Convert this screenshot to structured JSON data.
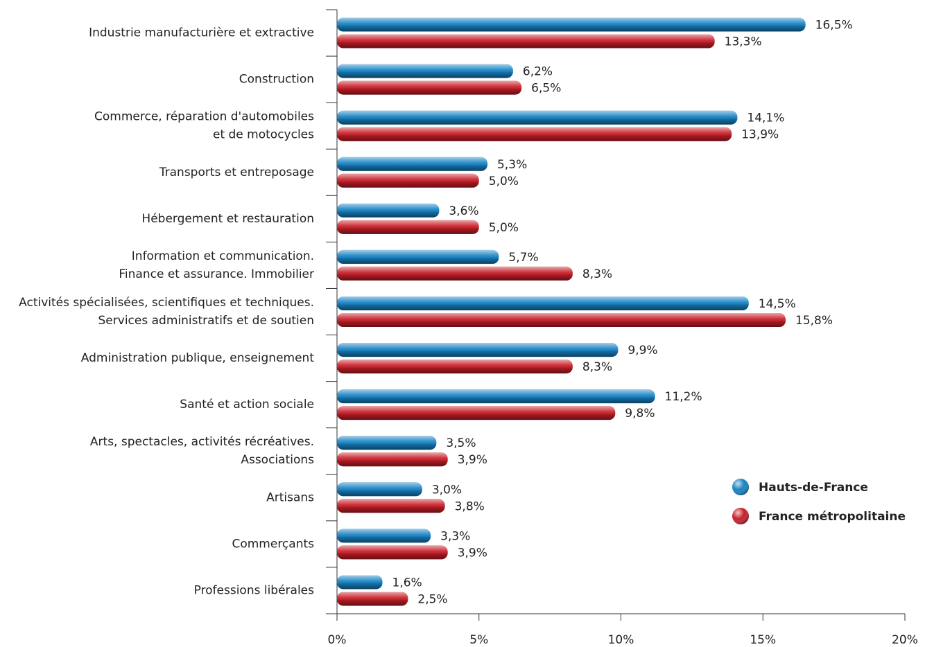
{
  "chart_data": {
    "type": "barh",
    "categories": [
      [
        "Industrie manufacturière et extractive"
      ],
      [
        "Construction"
      ],
      [
        "Commerce, réparation d'automobiles",
        "et de motocycles"
      ],
      [
        "Transports et entreposage"
      ],
      [
        "Hébergement et restauration"
      ],
      [
        "Information et communication.",
        "Finance et assurance. Immobilier"
      ],
      [
        "Activités spécialisées, scientifiques et techniques.",
        "Services administratifs et de soutien"
      ],
      [
        "Administration publique, enseignement"
      ],
      [
        "Santé et action sociale"
      ],
      [
        "Arts, spectacles, activités récréatives.",
        "Associations"
      ],
      [
        "Artisans"
      ],
      [
        "Commerçants"
      ],
      [
        "Professions libérales"
      ]
    ],
    "series": [
      {
        "name": "Hauts-de-France",
        "color": "#1682c4",
        "values": [
          16.5,
          6.2,
          14.1,
          5.3,
          3.6,
          5.7,
          14.5,
          9.9,
          11.2,
          3.5,
          3.0,
          3.3,
          1.6
        ],
        "value_labels": [
          "16,5%",
          "6,2%",
          "14,1%",
          "5,3%",
          "3,6%",
          "5,7%",
          "14,5%",
          "9,9%",
          "11,2%",
          "3,5%",
          "3,0%",
          "3,3%",
          "1,6%"
        ]
      },
      {
        "name": "France métropolitaine",
        "color": "#c81e28",
        "values": [
          13.3,
          6.5,
          13.9,
          5.0,
          5.0,
          8.3,
          15.8,
          8.3,
          9.8,
          3.9,
          3.8,
          3.9,
          2.5
        ],
        "value_labels": [
          "13,3%",
          "6,5%",
          "13,9%",
          "5,0%",
          "5,0%",
          "8,3%",
          "15,8%",
          "8,3%",
          "9,8%",
          "3,9%",
          "3,8%",
          "3,9%",
          "2,5%"
        ]
      }
    ],
    "xlim": [
      0,
      20
    ],
    "xticks": [
      {
        "value": 0,
        "label": "0%"
      },
      {
        "value": 5,
        "label": "5%"
      },
      {
        "value": 10,
        "label": "10%"
      },
      {
        "value": 15,
        "label": "15%"
      },
      {
        "value": 20,
        "label": "20%"
      }
    ],
    "legend": "lower right"
  }
}
